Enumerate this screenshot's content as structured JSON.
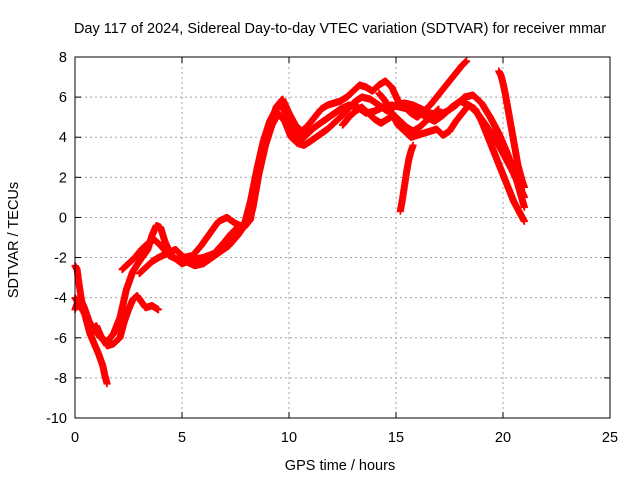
{
  "chart_data": {
    "type": "scatter",
    "title": "Day 117 of 2024, Sidereal Day-to-day VTEC variation (SDTVAR) for receiver mmar",
    "xlabel": "GPS time / hours",
    "ylabel": "SDTVAR / TECUs",
    "xlim": [
      0,
      25
    ],
    "ylim": [
      -10,
      8
    ],
    "x_ticks": [
      0,
      5,
      10,
      15,
      20,
      25
    ],
    "y_ticks": [
      -10,
      -8,
      -6,
      -4,
      -2,
      0,
      2,
      4,
      6,
      8
    ],
    "grid": true,
    "legend": "none",
    "marker": "plus",
    "series_color": "#ff0000",
    "series": [
      {
        "x": [
          0.0,
          0.1,
          0.2,
          0.3,
          0.5,
          0.7,
          0.9,
          1.1,
          1.3,
          1.4,
          1.5
        ],
        "y": [
          -2.4,
          -2.6,
          -3.4,
          -4.1,
          -5.0,
          -5.8,
          -6.3,
          -6.8,
          -7.4,
          -7.9,
          -8.3
        ]
      },
      {
        "x": [
          0.0,
          0.2,
          0.4,
          0.6,
          0.8,
          1.0,
          1.2,
          1.5,
          1.8,
          2.1,
          2.3,
          2.5,
          2.7,
          2.9,
          3.1,
          3.3,
          3.6,
          3.9
        ],
        "y": [
          -4.6,
          -4.0,
          -4.4,
          -5.0,
          -5.6,
          -5.4,
          -5.9,
          -6.4,
          -6.3,
          -6.0,
          -5.2,
          -4.6,
          -4.1,
          -3.9,
          -4.2,
          -4.5,
          -4.4,
          -4.6
        ]
      },
      {
        "x": [
          0.0,
          0.3,
          0.6,
          0.9,
          1.2,
          1.5,
          1.8,
          2.1,
          2.4,
          2.7,
          3.0,
          3.2,
          3.4,
          3.6,
          3.8,
          4.0,
          4.2,
          4.5,
          5.0,
          5.5,
          6.0,
          6.5,
          7.0,
          7.3,
          7.6,
          7.9,
          8.2,
          8.5,
          8.8,
          9.1,
          9.4,
          9.6,
          9.8,
          10.0,
          10.3,
          10.6,
          10.9,
          11.2,
          11.6,
          12.0,
          12.4,
          12.8,
          13.2,
          13.6,
          14.0,
          14.4,
          14.8,
          15.2,
          15.6,
          16.0,
          16.4,
          16.8,
          17.2,
          17.6,
          18.0,
          18.4,
          18.8,
          19.2,
          19.6,
          20.0,
          20.4,
          20.8,
          21.0
        ],
        "y": [
          -4.0,
          -4.5,
          -5.1,
          -5.6,
          -6.0,
          -6.2,
          -5.8,
          -5.0,
          -3.6,
          -2.7,
          -2.2,
          -1.9,
          -1.6,
          -0.9,
          -0.4,
          -0.5,
          -1.2,
          -1.9,
          -2.3,
          -2.1,
          -2.0,
          -1.8,
          -1.2,
          -0.8,
          -0.5,
          -0.4,
          0.8,
          2.4,
          3.8,
          4.8,
          5.4,
          5.6,
          5.3,
          4.8,
          4.2,
          3.9,
          4.2,
          4.5,
          4.8,
          5.1,
          5.4,
          5.6,
          5.5,
          5.2,
          5.3,
          5.5,
          5.6,
          5.5,
          5.4,
          5.3,
          5.0,
          4.8,
          5.1,
          5.5,
          5.8,
          5.6,
          5.2,
          4.6,
          4.0,
          3.2,
          2.4,
          1.5,
          1.0
        ]
      },
      {
        "x": [
          2.2,
          2.5,
          2.8,
          3.1,
          3.4,
          3.7,
          4.0,
          4.4,
          4.8,
          5.2,
          5.6,
          6.0,
          6.4,
          6.8,
          7.2,
          7.6,
          8.0,
          8.3,
          8.6,
          8.9,
          9.2,
          9.5,
          9.8,
          10.1,
          10.4,
          10.7,
          11.0,
          11.4,
          11.8,
          12.2,
          12.6,
          13.0,
          13.4,
          13.8,
          14.2,
          14.6,
          15.0,
          15.4,
          15.8,
          16.2,
          16.6,
          17.0,
          17.4,
          17.8,
          18.2,
          18.6,
          19.0,
          19.4,
          19.8,
          20.2,
          20.6,
          21.0
        ],
        "y": [
          -2.6,
          -2.3,
          -2.0,
          -1.6,
          -1.3,
          -1.1,
          -1.4,
          -1.9,
          -2.1,
          -2.2,
          -2.4,
          -2.3,
          -2.0,
          -1.7,
          -1.4,
          -0.9,
          -0.3,
          0.4,
          2.2,
          3.6,
          4.6,
          5.2,
          4.8,
          4.0,
          3.7,
          3.6,
          3.8,
          4.1,
          4.4,
          4.8,
          5.2,
          5.7,
          6.0,
          5.9,
          5.6,
          5.3,
          5.6,
          5.7,
          5.6,
          5.4,
          5.2,
          5.1,
          5.3,
          5.6,
          6.0,
          6.1,
          5.7,
          5.0,
          4.2,
          3.2,
          2.0,
          0.5
        ]
      },
      {
        "x": [
          3.0,
          3.3,
          3.6,
          3.9,
          4.3,
          4.7,
          5.1,
          5.5,
          5.9,
          6.3,
          6.7,
          7.1,
          7.5,
          7.9,
          8.2,
          8.5,
          8.8,
          9.1,
          9.4,
          9.7,
          10.0,
          10.3,
          10.6,
          10.9,
          11.2,
          11.5,
          11.8,
          12.1,
          12.4,
          12.7,
          13.0,
          13.3,
          13.6,
          13.9,
          14.2,
          14.5,
          14.8,
          15.1,
          15.4,
          15.7,
          16.0,
          16.3,
          16.6,
          16.9,
          17.2,
          17.5,
          17.8,
          18.1,
          18.3
        ],
        "y": [
          -2.8,
          -2.5,
          -2.2,
          -2.0,
          -1.8,
          -1.6,
          -2.0,
          -1.9,
          -1.4,
          -0.8,
          -0.2,
          0.0,
          -0.3,
          -0.5,
          -0.1,
          1.8,
          3.4,
          4.5,
          5.5,
          5.9,
          5.2,
          4.6,
          4.3,
          4.6,
          5.0,
          5.4,
          5.6,
          5.7,
          5.8,
          6.0,
          6.3,
          6.6,
          6.5,
          6.3,
          6.6,
          6.8,
          6.5,
          5.8,
          5.5,
          5.2,
          5.0,
          5.3,
          5.6,
          6.0,
          6.4,
          6.8,
          7.2,
          7.6,
          7.8
        ]
      },
      {
        "x": [
          12.5,
          12.8,
          13.1,
          13.4,
          13.7,
          14.0,
          14.3,
          14.6,
          14.9,
          15.2,
          15.5,
          15.8,
          16.1,
          16.4,
          16.7,
          17.0
        ],
        "y": [
          4.6,
          5.0,
          5.3,
          5.5,
          5.2,
          4.9,
          4.7,
          4.9,
          5.1,
          4.8,
          4.5,
          4.3,
          4.5,
          4.8,
          5.1,
          5.4
        ]
      },
      {
        "x": [
          15.2,
          15.3,
          15.4,
          15.5,
          15.6,
          15.7,
          15.8
        ],
        "y": [
          0.3,
          0.9,
          1.6,
          2.3,
          2.9,
          3.3,
          3.6
        ]
      },
      {
        "x": [
          14.2,
          14.5,
          14.8,
          15.1,
          15.4,
          15.7,
          16.0,
          16.3,
          16.6,
          16.9,
          17.2,
          17.5,
          17.8,
          18.1,
          18.4,
          18.7,
          19.0,
          19.3,
          19.6,
          19.9,
          20.2,
          20.5,
          20.8,
          21.0
        ],
        "y": [
          6.2,
          5.8,
          5.2,
          4.6,
          4.3,
          4.0,
          4.1,
          4.2,
          4.3,
          4.4,
          4.1,
          4.3,
          4.8,
          5.2,
          5.6,
          5.4,
          4.8,
          4.0,
          3.2,
          2.4,
          1.6,
          0.8,
          0.2,
          -0.2
        ]
      },
      {
        "x": [
          19.8,
          19.9,
          20.0,
          20.1,
          20.2,
          20.3,
          20.4,
          20.5,
          20.6,
          20.7,
          20.8,
          20.9,
          21.0
        ],
        "y": [
          7.3,
          7.1,
          6.7,
          6.2,
          5.6,
          5.0,
          4.4,
          3.8,
          3.2,
          2.6,
          2.2,
          1.8,
          1.5
        ]
      }
    ]
  }
}
